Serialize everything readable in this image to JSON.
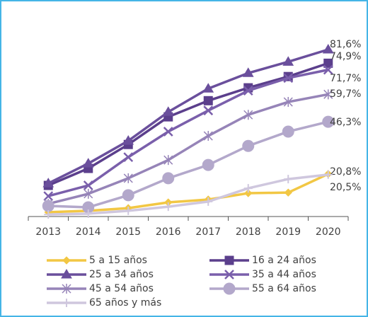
{
  "chart_data": {
    "type": "line",
    "categories": [
      "2013",
      "2014",
      "2015",
      "2016",
      "2017",
      "2018",
      "2019",
      "2020"
    ],
    "series": [
      {
        "name": "5 a 15 años",
        "color": "#f2c744",
        "marker": "diamond",
        "values": [
          2.1,
          2.8,
          4.1,
          6.9,
          8.3,
          11.4,
          11.7,
          20.8
        ],
        "value_labels": [
          null,
          null,
          null,
          null,
          null,
          null,
          null,
          "20,8%"
        ]
      },
      {
        "name": "16 a 24 años",
        "color": "#5b3f8c",
        "marker": "square",
        "values": [
          15.2,
          23.5,
          35.2,
          48.7,
          56.6,
          62.9,
          68.4,
          74.9
        ],
        "value_labels": [
          null,
          null,
          null,
          null,
          null,
          null,
          null,
          "74,9%"
        ]
      },
      {
        "name": "25 a 34 años",
        "color": "#6a4f9c",
        "marker": "triangle",
        "values": [
          16.2,
          25.9,
          37.0,
          51.1,
          62.5,
          70.1,
          75.6,
          81.6
        ],
        "value_labels": [
          null,
          null,
          null,
          null,
          null,
          null,
          null,
          "81,6%"
        ]
      },
      {
        "name": "35 a 44 años",
        "color": "#7a5fab",
        "marker": "x",
        "values": [
          10.0,
          15.2,
          29.0,
          41.5,
          51.8,
          61.5,
          67.7,
          71.7
        ],
        "value_labels": [
          null,
          null,
          null,
          null,
          null,
          null,
          null,
          "71,7%"
        ]
      },
      {
        "name": "45 a 54 años",
        "color": "#9684b8",
        "marker": "star",
        "values": [
          6.2,
          11.1,
          18.7,
          27.6,
          39.4,
          49.7,
          56.0,
          59.7
        ],
        "value_labels": [
          null,
          null,
          null,
          null,
          null,
          null,
          null,
          "59,7%"
        ]
      },
      {
        "name": "55 a 64 años",
        "color": "#b3a8cb",
        "marker": "circle",
        "values": [
          5.2,
          4.5,
          10.4,
          18.7,
          25.2,
          34.5,
          41.5,
          46.3
        ],
        "value_labels": [
          null,
          null,
          null,
          null,
          null,
          null,
          null,
          "46,3%"
        ]
      },
      {
        "name": "65 años y más",
        "color": "#cfc7de",
        "marker": "plus",
        "values": [
          1.0,
          1.4,
          2.8,
          4.8,
          7.3,
          13.8,
          18.3,
          20.5
        ],
        "value_labels": [
          null,
          null,
          null,
          null,
          null,
          null,
          null,
          "20,5%"
        ]
      }
    ]
  }
}
